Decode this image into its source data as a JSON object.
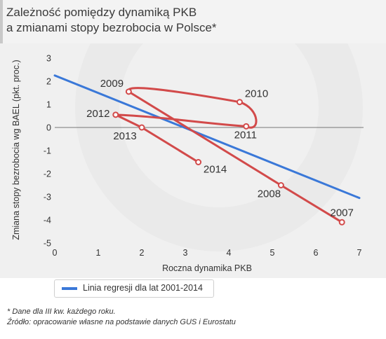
{
  "title": [
    "Zależność pomiędzy dynamiką PKB",
    "a zmianami stopy bezrobocia w Polsce*"
  ],
  "footnotes": [
    "* Dane dla III kw. każdego roku.",
    "Źródło: opracowanie własne na podstawie danych GUS i Eurostatu"
  ],
  "colors": {
    "data_series": "#d24a4a",
    "regression": "#3a78d8",
    "background": "#f0f0f0",
    "zero_line": "#777777"
  },
  "chart_data": {
    "type": "line",
    "xlabel": "Roczna dynamika PKB",
    "ylabel": "Zmiana stopy bezrobocia wg BAEL (pkt. proc.)",
    "xlim": [
      0,
      7
    ],
    "ylim": [
      -5,
      3
    ],
    "x_ticks": [
      "0",
      "1",
      "2",
      "3",
      "4",
      "5",
      "6",
      "7"
    ],
    "y_ticks": [
      "3",
      "2",
      "1",
      "0",
      "-1",
      "-2",
      "-3",
      "-4",
      "-5"
    ],
    "grid": false,
    "legend_position": "bottom-left",
    "series": [
      {
        "points": [
          {
            "year": "2007",
            "x": 6.6,
            "y": -4.1
          },
          {
            "year": "2008",
            "x": 5.2,
            "y": -2.5
          },
          {
            "year": "2009",
            "x": 1.7,
            "y": 1.55
          },
          {
            "year": "2010",
            "x": 4.25,
            "y": 1.1
          },
          {
            "year": "2011",
            "x": 4.4,
            "y": 0.05
          },
          {
            "year": "2012",
            "x": 1.4,
            "y": 0.55
          },
          {
            "year": "2013",
            "x": 2.0,
            "y": 0.0
          },
          {
            "year": "2014",
            "x": 3.3,
            "y": -1.5
          }
        ]
      },
      {
        "name": "Linia regresji dla lat 2001-2014",
        "type": "regression",
        "points": [
          {
            "x": 0,
            "y": 2.25
          },
          {
            "x": 7,
            "y": -3.05
          }
        ]
      }
    ]
  }
}
